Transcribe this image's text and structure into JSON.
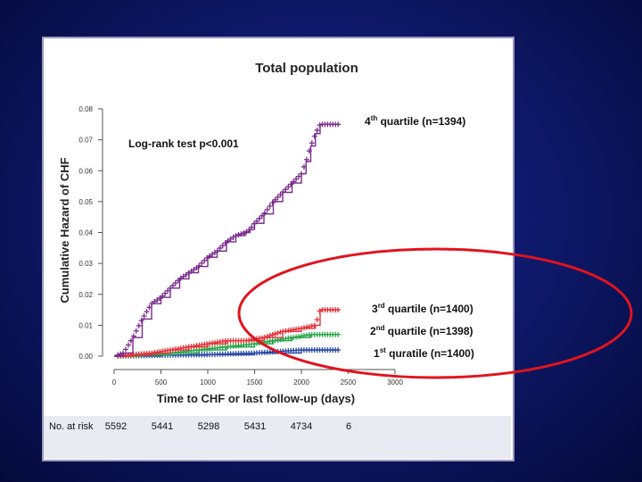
{
  "chart_data": {
    "type": "line",
    "title": "Total population",
    "xlabel": "Time to CHF or last follow-up (days)",
    "ylabel": "Cumulative Hazard of CHF",
    "xlim": [
      0,
      3000
    ],
    "ylim": [
      0,
      0.08
    ],
    "x_ticks": [
      "0",
      "500",
      "1000",
      "1500",
      "2000",
      "2500",
      "3000"
    ],
    "y_ticks": [
      "0.00",
      "0.01",
      "0.02",
      "0.03",
      "0.04",
      "0.05",
      "0.06",
      "0.07",
      "0.08"
    ],
    "annotation": "Log-rank test p<0.001",
    "series": [
      {
        "name": "4th quartile (n=1394)",
        "color": "#7a2a8c",
        "points": [
          [
            0,
            0
          ],
          [
            100,
            0.001
          ],
          [
            200,
            0.006
          ],
          [
            300,
            0.012
          ],
          [
            400,
            0.017
          ],
          [
            500,
            0.019
          ],
          [
            600,
            0.022
          ],
          [
            700,
            0.025
          ],
          [
            800,
            0.027
          ],
          [
            900,
            0.029
          ],
          [
            1000,
            0.032
          ],
          [
            1100,
            0.034
          ],
          [
            1200,
            0.037
          ],
          [
            1300,
            0.039
          ],
          [
            1400,
            0.04
          ],
          [
            1450,
            0.041
          ],
          [
            1500,
            0.043
          ],
          [
            1600,
            0.046
          ],
          [
            1700,
            0.05
          ],
          [
            1800,
            0.053
          ],
          [
            1900,
            0.056
          ],
          [
            2000,
            0.059
          ],
          [
            2050,
            0.063
          ],
          [
            2100,
            0.068
          ],
          [
            2150,
            0.072
          ],
          [
            2200,
            0.075
          ],
          [
            2400,
            0.075
          ]
        ]
      },
      {
        "name": "3rd quartile (n=1400)",
        "color": "#e8333a",
        "points": [
          [
            0,
            0
          ],
          [
            200,
            0.0005
          ],
          [
            400,
            0.001
          ],
          [
            600,
            0.002
          ],
          [
            800,
            0.003
          ],
          [
            1000,
            0.004
          ],
          [
            1200,
            0.005
          ],
          [
            1400,
            0.005
          ],
          [
            1600,
            0.006
          ],
          [
            1800,
            0.008
          ],
          [
            2000,
            0.009
          ],
          [
            2150,
            0.01
          ],
          [
            2200,
            0.015
          ],
          [
            2400,
            0.015
          ]
        ]
      },
      {
        "name": "2nd quartile (n=1398)",
        "color": "#2aa64a",
        "points": [
          [
            0,
            0
          ],
          [
            300,
            0.0005
          ],
          [
            600,
            0.001
          ],
          [
            900,
            0.002
          ],
          [
            1200,
            0.003
          ],
          [
            1500,
            0.004
          ],
          [
            1700,
            0.005
          ],
          [
            1900,
            0.006
          ],
          [
            2100,
            0.007
          ],
          [
            2400,
            0.007
          ]
        ]
      },
      {
        "name": "1st quratile (n=1400)",
        "color": "#2a4aa6",
        "points": [
          [
            0,
            0
          ],
          [
            500,
            0.0003
          ],
          [
            1000,
            0.0005
          ],
          [
            1500,
            0.001
          ],
          [
            2000,
            0.002
          ],
          [
            2400,
            0.002
          ]
        ]
      }
    ],
    "series_labels": [
      {
        "sup": "th",
        "pre": "4",
        "post": " quartile (n=1394)"
      },
      {
        "sup": "rd",
        "pre": "3",
        "post": " quartile (n=1400)"
      },
      {
        "sup": "nd",
        "pre": "2",
        "post": " quartile (n=1398)"
      },
      {
        "sup": "st",
        "pre": "1",
        "post": " quratile (n=1400)"
      }
    ],
    "risk_table": {
      "label": "No. at risk",
      "values": [
        "5592",
        "5441",
        "5298",
        "5431",
        "4734",
        "6"
      ]
    },
    "highlight_ellipse_color": "#e0141e"
  }
}
